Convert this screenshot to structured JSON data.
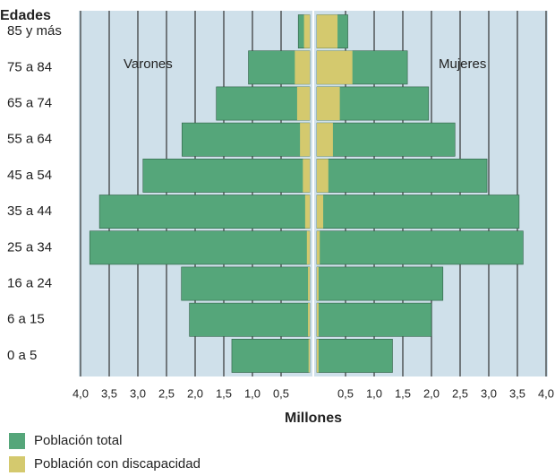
{
  "chart_data": {
    "type": "pyramid",
    "y_axis_title": "Edades",
    "x_axis_title": "Millones",
    "side_labels": [
      "Varones",
      "Mujeres"
    ],
    "categories": [
      "0 a 5",
      "6 a 15",
      "16 a 24",
      "25 a 34",
      "35 a 44",
      "45 a 54",
      "55 a 64",
      "65 a 74",
      "75 a 84",
      "85 y más"
    ],
    "series": [
      {
        "name": "Población total",
        "color": "#55a67a",
        "values": {
          "left": [
            1.36,
            2.1,
            2.24,
            3.84,
            3.67,
            2.91,
            2.23,
            1.63,
            1.07,
            0.2
          ],
          "right": [
            1.32,
            2.0,
            2.2,
            3.6,
            3.53,
            2.97,
            2.41,
            1.95,
            1.58,
            0.54
          ]
        }
      },
      {
        "name": "Población con discapacidad",
        "color": "#d4c96e",
        "values": {
          "left": [
            0.02,
            0.03,
            0.03,
            0.05,
            0.08,
            0.12,
            0.17,
            0.22,
            0.26,
            0.1
          ],
          "right": [
            0.03,
            0.03,
            0.03,
            0.05,
            0.11,
            0.2,
            0.28,
            0.4,
            0.62,
            0.36
          ]
        }
      }
    ],
    "xlim": [
      0,
      4
    ],
    "xticks": [
      {
        "value": 0.5,
        "label": "0,5"
      },
      {
        "value": 1,
        "label": "1,0"
      },
      {
        "value": 1.5,
        "label": "1,5"
      },
      {
        "value": 2,
        "label": "2,0"
      },
      {
        "value": 2.5,
        "label": "2,5"
      },
      {
        "value": 3,
        "label": "3,0"
      },
      {
        "value": 3.5,
        "label": "3,5"
      },
      {
        "value": 4,
        "label": "4,0"
      }
    ],
    "grid": true
  }
}
